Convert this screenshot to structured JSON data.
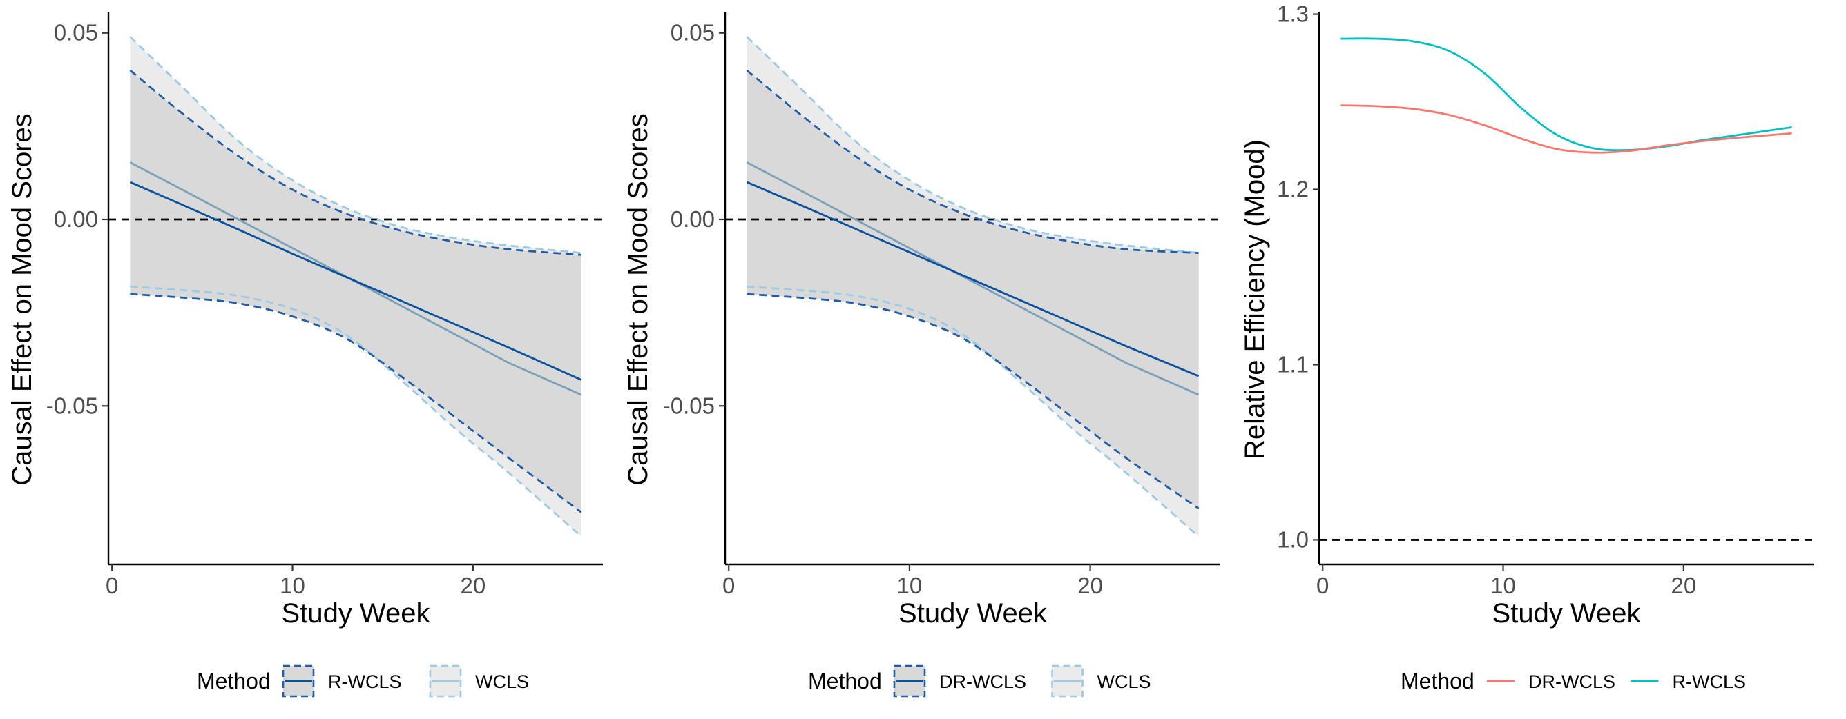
{
  "chart_data": [
    {
      "type": "line",
      "xlabel": "Study Week",
      "ylabel": "Causal Effect on Mood Scores",
      "xlim": [
        -0.2,
        27.2
      ],
      "ylim": [
        -0.0925,
        0.0555
      ],
      "xticks": [
        0,
        10,
        20
      ],
      "xtick_labels": [
        "0",
        "10",
        "20"
      ],
      "yticks": [
        0.05,
        0.0,
        -0.05
      ],
      "ytick_labels": [
        "0.05",
        "0.00",
        "-0.05"
      ],
      "reference_line": 0,
      "legend": {
        "title": "Method",
        "position": "bottom",
        "entries": [
          {
            "label": "R-WCLS",
            "line_color": "#08519c",
            "border_color": "#1f5da8",
            "fill": "#d9d9d9"
          },
          {
            "label": "WCLS",
            "line_color": "#9ecae1",
            "border_color": "#9ecae1",
            "fill": "#ebebeb"
          }
        ]
      },
      "series": [
        {
          "name": "R-WCLS",
          "color": "#08519c",
          "band_color": "#d9d9d9",
          "x": [
            1,
            4,
            7,
            10,
            13,
            16,
            19,
            22,
            26
          ],
          "y": [
            0.01,
            0.0037,
            -0.0027,
            -0.0092,
            -0.0155,
            -0.0218,
            -0.0281,
            -0.0344,
            -0.043
          ],
          "lower": [
            -0.02,
            -0.021,
            -0.0225,
            -0.026,
            -0.032,
            -0.042,
            -0.053,
            -0.064,
            -0.0785
          ],
          "upper": [
            0.04,
            0.028,
            0.017,
            0.008,
            0.0015,
            -0.003,
            -0.006,
            -0.008,
            -0.0095
          ]
        },
        {
          "name": "WCLS",
          "color": "#7ba0b8",
          "band_color": "#ebebeb",
          "x": [
            1,
            4,
            7,
            10,
            13,
            16,
            19,
            22,
            26
          ],
          "y": [
            0.0153,
            0.0077,
            0.0,
            -0.0077,
            -0.0154,
            -0.0231,
            -0.0308,
            -0.0385,
            -0.047
          ],
          "lower": [
            -0.018,
            -0.019,
            -0.0205,
            -0.024,
            -0.031,
            -0.043,
            -0.056,
            -0.068,
            -0.085
          ],
          "upper": [
            0.049,
            0.035,
            0.021,
            0.0105,
            0.003,
            -0.002,
            -0.005,
            -0.007,
            -0.009
          ]
        }
      ]
    },
    {
      "type": "line",
      "xlabel": "Study Week",
      "ylabel": "Causal Effect on Mood Scores",
      "xlim": [
        -0.2,
        27.2
      ],
      "ylim": [
        -0.0925,
        0.0555
      ],
      "xticks": [
        0,
        10,
        20
      ],
      "xtick_labels": [
        "0",
        "10",
        "20"
      ],
      "yticks": [
        0.05,
        0.0,
        -0.05
      ],
      "ytick_labels": [
        "0.05",
        "0.00",
        "-0.05"
      ],
      "reference_line": 0,
      "legend": {
        "title": "Method",
        "position": "bottom",
        "entries": [
          {
            "label": "DR-WCLS",
            "line_color": "#08519c",
            "border_color": "#1f5da8",
            "fill": "#d9d9d9"
          },
          {
            "label": "WCLS",
            "line_color": "#9ecae1",
            "border_color": "#9ecae1",
            "fill": "#ebebeb"
          }
        ]
      },
      "series": [
        {
          "name": "DR-WCLS",
          "color": "#08519c",
          "band_color": "#d9d9d9",
          "x": [
            1,
            4,
            7,
            10,
            13,
            16,
            19,
            22,
            26
          ],
          "y": [
            0.01,
            0.0038,
            -0.0025,
            -0.0088,
            -0.0151,
            -0.0214,
            -0.0277,
            -0.034,
            -0.042
          ],
          "lower": [
            -0.02,
            -0.021,
            -0.0225,
            -0.026,
            -0.032,
            -0.042,
            -0.053,
            -0.064,
            -0.0775
          ],
          "upper": [
            0.04,
            0.028,
            0.017,
            0.008,
            0.0015,
            -0.003,
            -0.006,
            -0.008,
            -0.009
          ]
        },
        {
          "name": "WCLS",
          "color": "#7ba0b8",
          "band_color": "#ebebeb",
          "x": [
            1,
            4,
            7,
            10,
            13,
            16,
            19,
            22,
            26
          ],
          "y": [
            0.0153,
            0.0077,
            0.0,
            -0.0077,
            -0.0154,
            -0.0231,
            -0.0308,
            -0.0385,
            -0.047
          ],
          "lower": [
            -0.018,
            -0.019,
            -0.0205,
            -0.024,
            -0.031,
            -0.043,
            -0.056,
            -0.068,
            -0.085
          ],
          "upper": [
            0.049,
            0.035,
            0.021,
            0.0105,
            0.003,
            -0.002,
            -0.005,
            -0.007,
            -0.009
          ]
        }
      ]
    },
    {
      "type": "line",
      "xlabel": "Study Week",
      "ylabel": "Relative Efficiency (Mood)",
      "xlim": [
        -0.2,
        27.2
      ],
      "ylim": [
        0.986,
        1.301
      ],
      "xticks": [
        0,
        10,
        20
      ],
      "xtick_labels": [
        "0",
        "10",
        "20"
      ],
      "yticks": [
        1.3,
        1.2,
        1.1,
        1.0
      ],
      "ytick_labels": [
        "1.3",
        "1.2",
        "1.1",
        "1.0"
      ],
      "reference_line": 1.0,
      "legend": {
        "title": "Method",
        "position": "bottom",
        "entries": [
          {
            "label": "DR-WCLS",
            "line_color": "#f8766d"
          },
          {
            "label": "R-WCLS",
            "line_color": "#00bfc4"
          }
        ]
      },
      "series": [
        {
          "name": "DR-WCLS",
          "color": "#f8766d",
          "x": [
            1,
            3,
            5,
            7,
            9,
            11,
            13,
            15,
            17,
            19,
            21,
            23,
            26
          ],
          "y": [
            1.248,
            1.2475,
            1.246,
            1.2425,
            1.2365,
            1.229,
            1.223,
            1.221,
            1.222,
            1.225,
            1.2275,
            1.2295,
            1.232
          ]
        },
        {
          "name": "R-WCLS",
          "color": "#00bfc4",
          "x": [
            1,
            3,
            5,
            7,
            9,
            11,
            13,
            15,
            17,
            19,
            21,
            23,
            26
          ],
          "y": [
            1.286,
            1.286,
            1.2845,
            1.279,
            1.266,
            1.2465,
            1.231,
            1.2235,
            1.2225,
            1.2245,
            1.228,
            1.231,
            1.2355
          ]
        }
      ]
    }
  ]
}
